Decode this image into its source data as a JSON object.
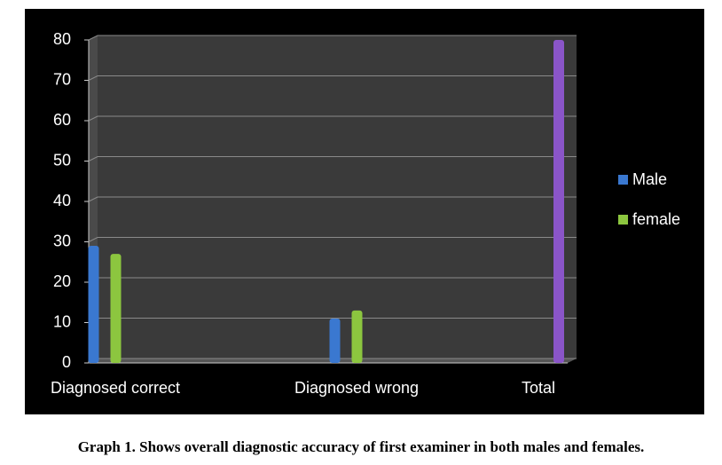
{
  "chart_data": {
    "type": "bar",
    "categories": [
      "Diagnosed correct",
      "Diagnosed wrong",
      "Total"
    ],
    "series": [
      {
        "name": "Male",
        "color": "#3a78d0",
        "values": [
          29,
          11,
          null
        ]
      },
      {
        "name": "female",
        "color": "#8cc63f",
        "values": [
          27,
          13,
          null
        ]
      },
      {
        "color": "#8a55c8",
        "values": [
          null,
          null,
          80
        ]
      }
    ],
    "ylim": [
      0,
      80
    ],
    "yticks": [
      0,
      10,
      20,
      30,
      40,
      50,
      60,
      70,
      80
    ],
    "grid": true,
    "legend": "right"
  },
  "caption": "Graph 1. Shows overall diagnostic accuracy of first examiner in both males and females."
}
